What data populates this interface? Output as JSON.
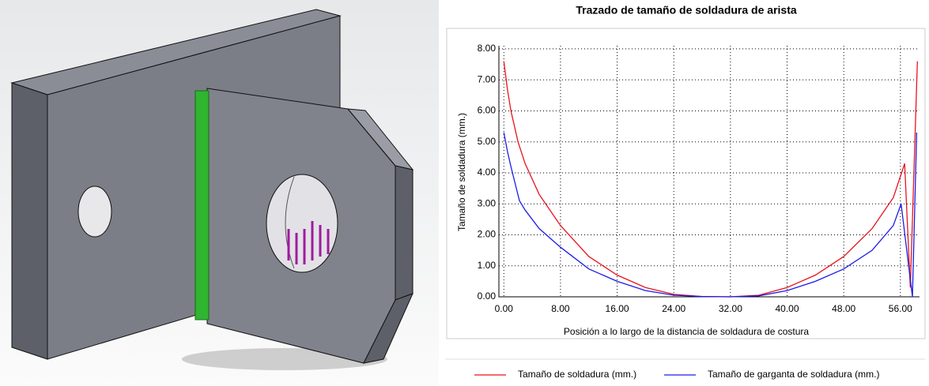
{
  "chart_data": {
    "type": "line",
    "title": "Trazado de tamaño de soldadura de arista",
    "x_label": "Posición a lo largo de la distancia de soldadura de costura",
    "y_label": "Tamaño de soldadura (mm.)",
    "xlim": [
      -0.7,
      58.7
    ],
    "ylim": [
      0,
      8.1
    ],
    "xticks": [
      {
        "value": 0,
        "label": "0.00"
      },
      {
        "value": 8,
        "label": "8.00"
      },
      {
        "value": 16,
        "label": "16.00"
      },
      {
        "value": 24,
        "label": "24.00"
      },
      {
        "value": 32,
        "label": "32.00"
      },
      {
        "value": 40,
        "label": "40.00"
      },
      {
        "value": 48,
        "label": "48.00"
      },
      {
        "value": 56,
        "label": "56.00"
      }
    ],
    "yticks": [
      {
        "value": 0,
        "label": "0.00"
      },
      {
        "value": 1,
        "label": "1.00"
      },
      {
        "value": 2,
        "label": "2.00"
      },
      {
        "value": 3,
        "label": "3.00"
      },
      {
        "value": 4,
        "label": "4.00"
      },
      {
        "value": 5,
        "label": "5.00"
      },
      {
        "value": 6,
        "label": "6.00"
      },
      {
        "value": 7,
        "label": "7.00"
      },
      {
        "value": 8,
        "label": "8.00"
      }
    ],
    "grid": true,
    "series": [
      {
        "name": "Tamaño de soldadura (mm.)",
        "color": "#e8141c",
        "x": [
          0,
          0.5,
          1,
          2,
          3,
          5,
          8,
          12,
          16,
          20,
          24,
          28,
          32,
          36,
          40,
          44,
          48,
          52,
          55,
          56.6,
          57.4,
          58.4
        ],
        "values": [
          7.6,
          6.7,
          6.0,
          5.0,
          4.3,
          3.3,
          2.3,
          1.3,
          0.7,
          0.3,
          0.08,
          0.01,
          0,
          0.05,
          0.3,
          0.7,
          1.3,
          2.2,
          3.2,
          4.3,
          0.3,
          7.6
        ]
      },
      {
        "name": "Tamaño de garganta de soldadura (mm.)",
        "color": "#1c1ce8",
        "x": [
          0,
          0.5,
          1,
          2.2,
          3,
          5,
          8,
          12,
          16,
          20,
          24,
          28,
          32,
          36,
          40,
          44,
          48,
          52,
          55,
          56.1,
          57.7,
          58.3
        ],
        "values": [
          5.3,
          4.7,
          4.2,
          3.1,
          2.8,
          2.2,
          1.6,
          0.9,
          0.5,
          0.2,
          0.05,
          0.01,
          0,
          0.03,
          0.2,
          0.5,
          0.9,
          1.5,
          2.3,
          3.0,
          0,
          5.3
        ]
      }
    ]
  }
}
